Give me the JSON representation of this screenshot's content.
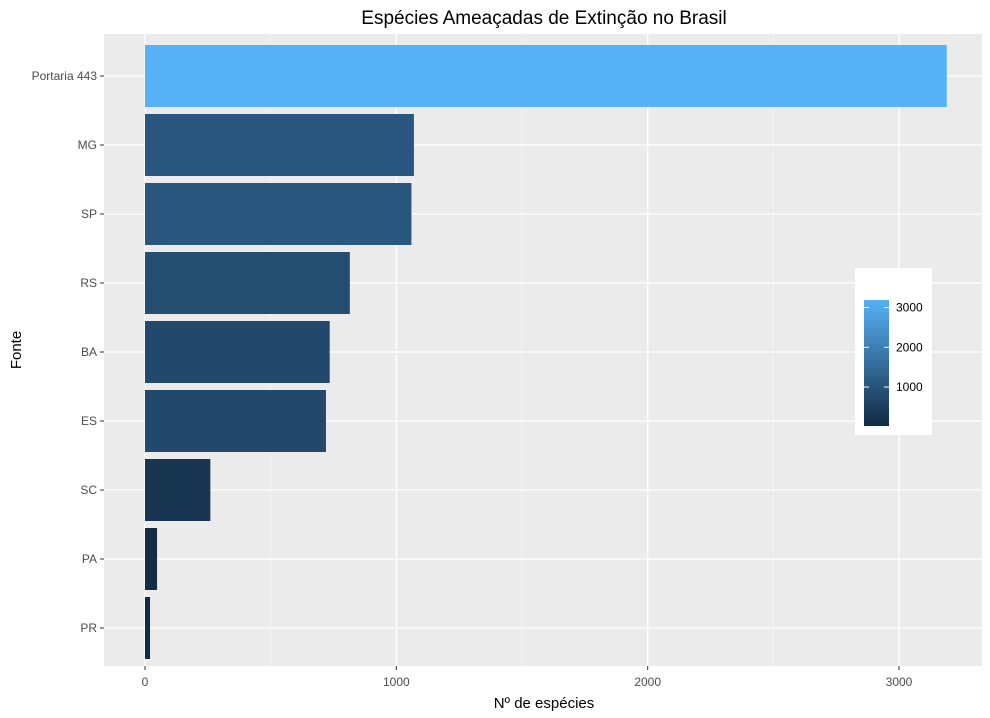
{
  "chart_data": {
    "type": "bar",
    "orientation": "horizontal",
    "title": "Espécies Ameaçadas de Extinção no Brasil",
    "xlabel": "Nº de espécies",
    "ylabel": "Fonte",
    "categories": [
      "Portaria 443",
      "MG",
      "SP",
      "RS",
      "BA",
      "ES",
      "SC",
      "PA",
      "PR"
    ],
    "values": [
      3190,
      1070,
      1060,
      815,
      735,
      720,
      260,
      48,
      20
    ],
    "xlim": [
      0,
      3380
    ],
    "xticks": [
      0,
      1000,
      2000,
      3000
    ],
    "grid": true,
    "fill_scale": {
      "low_color": "#132B43",
      "high_color": "#56B1F7",
      "domain": [
        20,
        3190
      ],
      "ticks": [
        1000,
        2000,
        3000
      ]
    },
    "legend_placement": "right"
  }
}
